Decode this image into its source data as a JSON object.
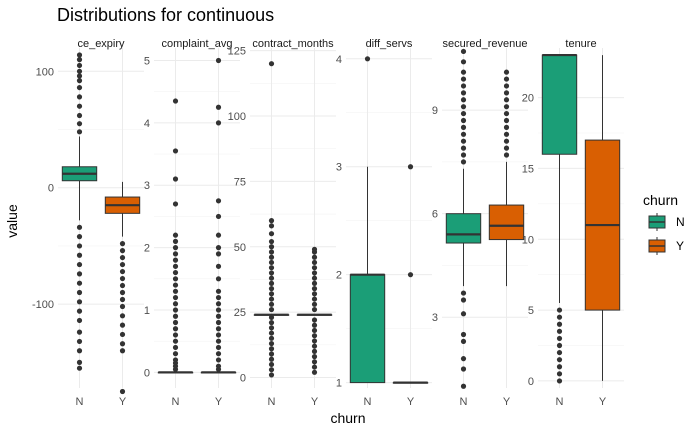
{
  "chart_data": {
    "type": "boxplot",
    "title": "Distributions for continuous",
    "xlabel": "churn",
    "ylabel": "value",
    "categories": [
      "N",
      "Y"
    ],
    "legend": {
      "title": "churn",
      "placement": "right",
      "entries": [
        {
          "label": "N",
          "color": "#1b9e77"
        },
        {
          "label": "Y",
          "color": "#d95f02"
        }
      ]
    },
    "grid": true,
    "facets": [
      {
        "name": "ce_expiry",
        "ylim": [
          -172,
          120
        ],
        "ticks": [
          -100,
          0,
          100
        ],
        "groups": [
          {
            "cat": "N",
            "min": -28,
            "q1": 6,
            "median": 12,
            "q3": 18,
            "max": 44,
            "outliers": [
              48,
              55,
              62,
              70,
              78,
              86,
              92,
              96,
              100,
              105,
              110,
              114,
              -34,
              -42,
              -50,
              -58,
              -66,
              -74,
              -82,
              -90,
              -98,
              -106,
              -114,
              -124,
              -132,
              -140,
              -150,
              -155
            ]
          },
          {
            "cat": "Y",
            "min": -42,
            "q1": -22,
            "median": -15,
            "q3": -8,
            "max": 5,
            "outliers": [
              -48,
              -54,
              -60,
              -66,
              -72,
              -78,
              -84,
              -90,
              -96,
              -102,
              -110,
              -118,
              -126,
              -134,
              -140,
              -175
            ]
          }
        ]
      },
      {
        "name": "complaint_avg",
        "ylim": [
          -0.25,
          5.2
        ],
        "ticks": [
          0,
          1,
          2,
          3,
          4,
          5
        ],
        "groups": [
          {
            "cat": "N",
            "min": 0,
            "q1": 0,
            "median": 0,
            "q3": 0,
            "max": 0,
            "outliers": [
              0.05,
              0.1,
              0.15,
              0.2,
              0.3,
              0.4,
              0.5,
              0.6,
              0.7,
              0.8,
              0.9,
              1.0,
              1.1,
              1.2,
              1.3,
              1.4,
              1.5,
              1.6,
              1.7,
              1.8,
              1.9,
              2.0,
              2.1,
              2.2,
              2.7,
              3.1,
              3.55,
              4.35
            ]
          },
          {
            "cat": "Y",
            "min": 0,
            "q1": 0,
            "median": 0,
            "q3": 0,
            "max": 0,
            "outliers": [
              0.05,
              0.1,
              0.2,
              0.3,
              0.4,
              0.5,
              0.6,
              0.7,
              0.8,
              0.9,
              1.0,
              1.1,
              1.2,
              1.3,
              1.5,
              1.7,
              1.9,
              2.0,
              2.2,
              2.5,
              2.75,
              4.0,
              4.25,
              5.0
            ]
          }
        ]
      },
      {
        "name": "contract_months",
        "ylim": [
          -4,
          126
        ],
        "ticks": [
          0,
          25,
          50,
          75,
          100,
          125
        ],
        "groups": [
          {
            "cat": "N",
            "min": 24,
            "q1": 24,
            "median": 24,
            "q3": 24,
            "max": 24,
            "outliers": [
              1,
              3,
              5,
              7,
              9,
              11,
              13,
              15,
              17,
              19,
              21,
              23,
              26,
              28,
              30,
              32,
              34,
              36,
              38,
              40,
              42,
              44,
              46,
              48,
              50,
              52,
              55,
              58,
              60,
              120
            ]
          },
          {
            "cat": "Y",
            "min": 24,
            "q1": 24,
            "median": 24,
            "q3": 24,
            "max": 24,
            "outliers": [
              2,
              4,
              6,
              8,
              10,
              12,
              14,
              16,
              18,
              20,
              22,
              26,
              28,
              30,
              32,
              34,
              36,
              38,
              40,
              42,
              44,
              46,
              48,
              49
            ]
          }
        ]
      },
      {
        "name": "diff_servs",
        "ylim": [
          0.95,
          4.1
        ],
        "ticks": [
          1,
          2,
          3,
          4
        ],
        "groups": [
          {
            "cat": "N",
            "min": 1,
            "q1": 1,
            "median": 2,
            "q3": 2,
            "max": 3,
            "outliers": [
              4
            ]
          },
          {
            "cat": "Y",
            "min": 1,
            "q1": 1,
            "median": 1,
            "q3": 1,
            "max": 1,
            "outliers": [
              2,
              3
            ]
          }
        ]
      },
      {
        "name": "secured_revenue",
        "ylim": [
          0.95,
          10.8
        ],
        "ticks": [
          3,
          6,
          9
        ],
        "groups": [
          {
            "cat": "N",
            "min": 3.9,
            "q1": 5.15,
            "median": 5.4,
            "q3": 6.0,
            "max": 7.3,
            "outliers": [
              7.5,
              7.7,
              7.9,
              8.1,
              8.3,
              8.5,
              8.7,
              8.9,
              9.1,
              9.3,
              9.5,
              9.7,
              9.9,
              10.1,
              10.4,
              10.7,
              3.7,
              3.5,
              3.1,
              2.5,
              2.3,
              1.8,
              1.5,
              1.0
            ]
          },
          {
            "cat": "Y",
            "min": 3.9,
            "q1": 5.25,
            "median": 5.65,
            "q3": 6.25,
            "max": 7.5,
            "outliers": [
              7.7,
              7.9,
              8.1,
              8.3,
              8.5,
              8.7,
              8.9,
              9.1,
              9.3,
              9.5,
              9.7,
              9.9,
              10.1
            ]
          }
        ]
      },
      {
        "name": "tenure",
        "ylim": [
          -0.5,
          23.5
        ],
        "ticks": [
          0,
          5,
          10,
          15,
          20
        ],
        "groups": [
          {
            "cat": "N",
            "min": 5.5,
            "q1": 16,
            "median": 23,
            "q3": 23,
            "max": 23,
            "outliers": [
              0,
              0.5,
              1,
              1.5,
              2,
              2.5,
              3,
              3.5,
              4,
              4.5,
              5
            ]
          },
          {
            "cat": "Y",
            "min": 0,
            "q1": 5,
            "median": 11,
            "q3": 17,
            "max": 23,
            "outliers": []
          }
        ]
      }
    ]
  }
}
